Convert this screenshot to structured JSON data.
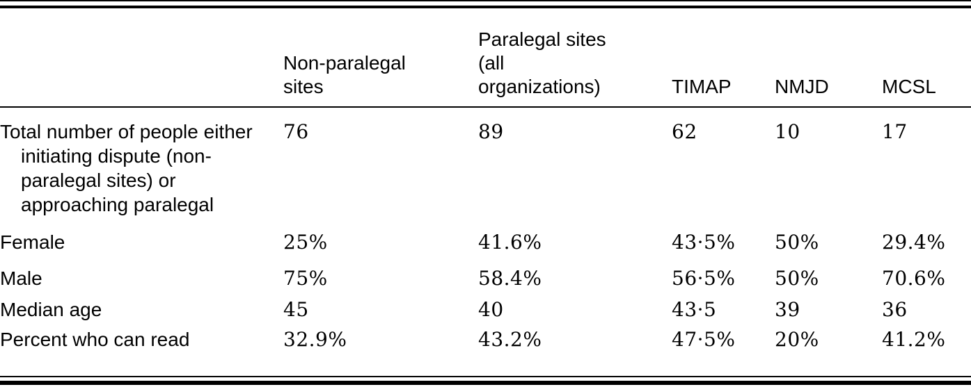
{
  "table": {
    "columns": [
      {
        "label": ""
      },
      {
        "label": "Non-paralegal sites"
      },
      {
        "label": "Paralegal sites (all organizations)"
      },
      {
        "label": "TIMAP"
      },
      {
        "label": "NMJD"
      },
      {
        "label": "MCSL"
      }
    ],
    "rows": [
      {
        "label": "Total number of people either initiating dispute (non-paralegal sites) or approaching paralegal",
        "values": [
          "76",
          "89",
          "62",
          "10",
          "17"
        ]
      },
      {
        "label": "Female",
        "values": [
          "25%",
          "41.6%",
          "43·5%",
          "50%",
          "29.4%"
        ]
      },
      {
        "label": "Male",
        "values": [
          "75%",
          "58.4%",
          "56·5%",
          "50%",
          "70.6%"
        ]
      },
      {
        "label": "Median age",
        "values": [
          "45",
          "40",
          "43·5",
          "39",
          "36"
        ]
      },
      {
        "label": "Percent who can read",
        "values": [
          "32.9%",
          "43.2%",
          "47·5%",
          "20%",
          "41.2%"
        ]
      }
    ]
  },
  "chart_data": {
    "type": "table",
    "categories": [
      "Non-paralegal sites",
      "Paralegal sites (all organizations)",
      "TIMAP",
      "NMJD",
      "MCSL"
    ],
    "series": [
      {
        "name": "Total number of people either initiating dispute (non-paralegal sites) or approaching paralegal",
        "values": [
          76,
          89,
          62,
          10,
          17
        ]
      },
      {
        "name": "Female",
        "values": [
          "25%",
          "41.6%",
          "43.5%",
          "50%",
          "29.4%"
        ]
      },
      {
        "name": "Male",
        "values": [
          "75%",
          "58.4%",
          "56.5%",
          "50%",
          "70.6%"
        ]
      },
      {
        "name": "Median age",
        "values": [
          45,
          40,
          43.5,
          39,
          36
        ]
      },
      {
        "name": "Percent who can read",
        "values": [
          "32.9%",
          "43.2%",
          "47.5%",
          "20%",
          "41.2%"
        ]
      }
    ]
  }
}
